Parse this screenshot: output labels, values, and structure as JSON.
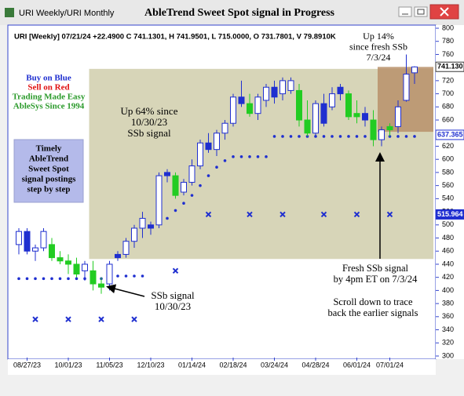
{
  "window": {
    "tab": "URI Weekly/URI Monthly"
  },
  "chart_data": {
    "type": "candlestick",
    "title": "AbleTrend Sweet Spot signal in Progress",
    "header": "URI [Weekly] 07/21/24  +22.4900 C 741.1301, H 741.9501, L 715.0000, O 731.7801, V 79.8910K",
    "categories": [
      null,
      "08/27/23",
      null,
      null,
      null,
      null,
      "10/01/23",
      null,
      null,
      null,
      null,
      "11/05/23",
      null,
      null,
      null,
      null,
      "12/10/23",
      null,
      null,
      null,
      null,
      "01/14/24",
      null,
      null,
      null,
      null,
      "02/18/24",
      null,
      null,
      null,
      null,
      "03/24/24",
      null,
      null,
      null,
      null,
      "04/28/24",
      null,
      null,
      null,
      null,
      "06/01/24",
      null,
      null,
      null,
      "07/01/24",
      null,
      null,
      null
    ],
    "candles": {
      "open": [
        470,
        490,
        460,
        465,
        470,
        450,
        445,
        440,
        430,
        430,
        410,
        410,
        450,
        455,
        475,
        495,
        495,
        500,
        575,
        575,
        550,
        565,
        590,
        625,
        615,
        640,
        655,
        695,
        685,
        670,
        690,
        710,
        700,
        720,
        705,
        660,
        640,
        685,
        680,
        700,
        700,
        665,
        670,
        660,
        630,
        645,
        650,
        690,
        732
      ],
      "high": [
        495,
        495,
        470,
        495,
        480,
        460,
        455,
        450,
        445,
        445,
        420,
        445,
        460,
        480,
        500,
        520,
        505,
        580,
        585,
        580,
        570,
        600,
        630,
        640,
        645,
        660,
        700,
        720,
        700,
        700,
        715,
        720,
        725,
        725,
        715,
        690,
        690,
        700,
        710,
        715,
        705,
        690,
        680,
        675,
        650,
        655,
        690,
        760,
        742
      ],
      "low": [
        455,
        455,
        445,
        460,
        445,
        440,
        425,
        420,
        415,
        400,
        395,
        400,
        445,
        450,
        465,
        480,
        485,
        495,
        565,
        540,
        545,
        560,
        585,
        610,
        605,
        630,
        650,
        680,
        665,
        660,
        680,
        685,
        690,
        700,
        650,
        635,
        635,
        650,
        675,
        690,
        660,
        655,
        650,
        620,
        620,
        635,
        640,
        688,
        715
      ],
      "close": [
        490,
        460,
        465,
        490,
        450,
        445,
        440,
        425,
        440,
        410,
        405,
        440,
        455,
        475,
        495,
        510,
        500,
        575,
        580,
        545,
        565,
        590,
        625,
        615,
        640,
        655,
        695,
        685,
        670,
        695,
        710,
        695,
        720,
        705,
        660,
        640,
        685,
        655,
        700,
        710,
        665,
        670,
        660,
        630,
        645,
        650,
        680,
        730,
        741
      ],
      "colors": [
        "#ffffff",
        "#1f2fd0",
        "#ffffff",
        "#ffffff",
        "#22cc22",
        "#22cc22",
        "#22cc22",
        "#22cc22",
        "#ffffff",
        "#22cc22",
        "#22cc22",
        "#ffffff",
        "#1f2fd0",
        "#ffffff",
        "#ffffff",
        "#ffffff",
        "#1f2fd0",
        "#ffffff",
        "#1f2fd0",
        "#22cc22",
        "#ffffff",
        "#ffffff",
        "#ffffff",
        "#1f2fd0",
        "#ffffff",
        "#ffffff",
        "#ffffff",
        "#1f2fd0",
        "#22cc22",
        "#ffffff",
        "#ffffff",
        "#1f2fd0",
        "#ffffff",
        "#ffffff",
        "#22cc22",
        "#22cc22",
        "#ffffff",
        "#1f2fd0",
        "#ffffff",
        "#1f2fd0",
        "#22cc22",
        "#22cc22",
        "#1f2fd0",
        "#22cc22",
        "#ffffff",
        "#22cc22",
        "#ffffff",
        "#ffffff",
        "#ffffff"
      ]
    },
    "stops": [
      418,
      418,
      418,
      418,
      418,
      418,
      418,
      418,
      418,
      418,
      418,
      null,
      422,
      422,
      422,
      422,
      null,
      503,
      510,
      522,
      533,
      545,
      560,
      575,
      588,
      598,
      604,
      604,
      604,
      604,
      604,
      635,
      635,
      635,
      635,
      635,
      635,
      635,
      635,
      635,
      635,
      635,
      635,
      635,
      635,
      635,
      635,
      635,
      635
    ],
    "x_marks": [
      null,
      null,
      356,
      null,
      null,
      null,
      356,
      null,
      null,
      null,
      356,
      null,
      null,
      null,
      356,
      null,
      null,
      null,
      null,
      430,
      null,
      null,
      null,
      516,
      null,
      null,
      null,
      null,
      516,
      null,
      null,
      null,
      516,
      null,
      null,
      null,
      null,
      516,
      null,
      null,
      null,
      516,
      null,
      null,
      null,
      516,
      null,
      null,
      null
    ],
    "zones": [
      {
        "from": 9,
        "to": 48,
        "low": 448,
        "high": 738,
        "color": "#d3d0b0"
      },
      {
        "from": 44,
        "to": 48,
        "low": 642,
        "high": 741,
        "color": "#b8916a"
      }
    ],
    "price_tags": [
      {
        "value": 741.13,
        "label": "741.130"
      },
      {
        "value": 637.365,
        "label": "637.365"
      },
      {
        "value": 515.964,
        "label": "515.964"
      }
    ],
    "ylim": [
      300,
      800
    ],
    "yticks": [
      300,
      320,
      340,
      360,
      380,
      400,
      420,
      440,
      460,
      480,
      500,
      520,
      540,
      560,
      580,
      600,
      620,
      640,
      660,
      680,
      700,
      720,
      740,
      760,
      780,
      800
    ],
    "legend_lines": [
      {
        "text": "Buy on Blue",
        "color": "#1f2fd0"
      },
      {
        "text": "Sell on Red",
        "color": "#e01010"
      },
      {
        "text": "Trading Made Easy",
        "color": "#2a9a2a"
      },
      {
        "text": "AbleSys Since 1994",
        "color": "#2a9a2a"
      }
    ],
    "annotations": {
      "up14": [
        "Up 14%",
        "since fresh SSb",
        "7/3/24"
      ],
      "timely": [
        "Timely",
        "AbleTrend",
        "Sweet Spot",
        "signal postings",
        "step by step"
      ],
      "up64": [
        "Up 64% since",
        "10/30/23",
        "SSb signal"
      ],
      "ssb": [
        "SSb signal",
        "10/30/23"
      ],
      "fresh": [
        "Fresh SSb signal",
        "by 4pm ET on 7/3/24"
      ],
      "scroll": [
        "Scroll down to trace",
        "back the earlier signals"
      ]
    }
  }
}
